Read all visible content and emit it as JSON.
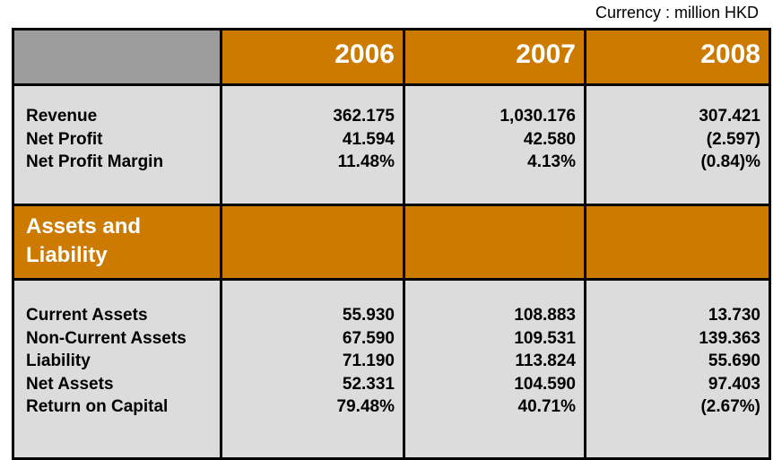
{
  "currency_note": "Currency : million HKD",
  "years": [
    "2006",
    "2007",
    "2008"
  ],
  "income": {
    "labels": [
      "Revenue",
      "Net Profit",
      "Net Profit Margin"
    ],
    "values": [
      [
        "362.175",
        "41.594",
        "11.48%"
      ],
      [
        "1,030.176",
        "42.580",
        "4.13%"
      ],
      [
        "307.421",
        "(2.597)",
        "(0.84)%"
      ]
    ]
  },
  "section_title": [
    "Assets and",
    "Liability"
  ],
  "assets": {
    "labels": [
      "Current Assets",
      "Non-Current Assets",
      "Liability",
      "Net Assets",
      "Return on Capital"
    ],
    "values": [
      [
        "55.930",
        "67.590",
        "71.190",
        "52.331",
        "79.48%"
      ],
      [
        "108.883",
        "109.531",
        "113.824",
        "104.590",
        "40.71%"
      ],
      [
        "13.730",
        "139.363",
        "55.690",
        "97.403",
        "(2.67%)"
      ]
    ]
  },
  "colors": {
    "orange": "#cc7a00",
    "gray": "#dcdcdc",
    "dark_gray": "#9c9c9c"
  }
}
